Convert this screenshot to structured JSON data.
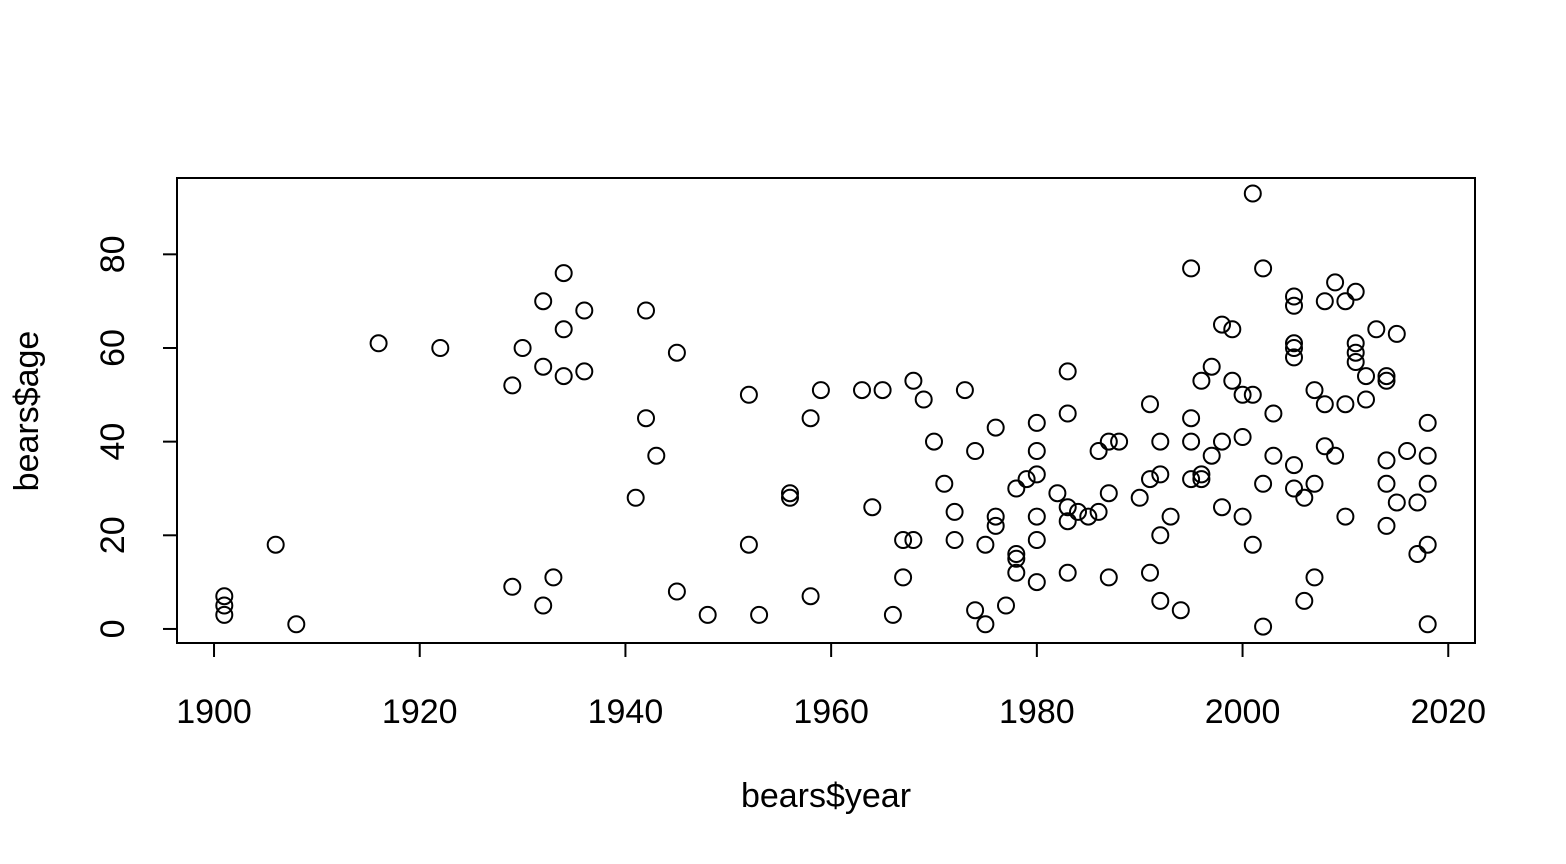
{
  "chart_data": {
    "type": "scatter",
    "title": "",
    "xlabel": "bears$year",
    "ylabel": "bears$age",
    "xlim": [
      1896.4,
      2022.6
    ],
    "ylim": [
      -3.0,
      96.3
    ],
    "x_ticks": [
      1900,
      1920,
      1940,
      1960,
      1980,
      2000,
      2020
    ],
    "y_ticks": [
      0,
      20,
      40,
      60,
      80
    ],
    "x_tick_labels": [
      "1900",
      "1920",
      "1940",
      "1960",
      "1980",
      "2000",
      "2020"
    ],
    "y_tick_labels": [
      "0",
      "20",
      "40",
      "60",
      "80"
    ],
    "grid": false,
    "marker": "open-circle",
    "color": "#000000",
    "points": [
      [
        1901,
        3
      ],
      [
        1901,
        5
      ],
      [
        1901,
        7
      ],
      [
        1906,
        18
      ],
      [
        1908,
        1
      ],
      [
        1916,
        61
      ],
      [
        1922,
        60
      ],
      [
        1929,
        52
      ],
      [
        1929,
        9
      ],
      [
        1930,
        60
      ],
      [
        1932,
        70
      ],
      [
        1932,
        56
      ],
      [
        1932,
        5
      ],
      [
        1933,
        11
      ],
      [
        1934,
        76
      ],
      [
        1934,
        64
      ],
      [
        1934,
        54
      ],
      [
        1936,
        68
      ],
      [
        1936,
        55
      ],
      [
        1941,
        28
      ],
      [
        1942,
        68
      ],
      [
        1942,
        45
      ],
      [
        1943,
        37
      ],
      [
        1945,
        59
      ],
      [
        1945,
        8
      ],
      [
        1948,
        3
      ],
      [
        1952,
        50
      ],
      [
        1952,
        18
      ],
      [
        1953,
        3
      ],
      [
        1956,
        29
      ],
      [
        1956,
        28
      ],
      [
        1958,
        45
      ],
      [
        1958,
        7
      ],
      [
        1959,
        51
      ],
      [
        1963,
        51
      ],
      [
        1964,
        26
      ],
      [
        1965,
        51
      ],
      [
        1966,
        3
      ],
      [
        1967,
        19
      ],
      [
        1967,
        11
      ],
      [
        1968,
        53
      ],
      [
        1968,
        19
      ],
      [
        1969,
        49
      ],
      [
        1970,
        40
      ],
      [
        1971,
        31
      ],
      [
        1972,
        25
      ],
      [
        1972,
        19
      ],
      [
        1973,
        51
      ],
      [
        1974,
        38
      ],
      [
        1974,
        4
      ],
      [
        1975,
        18
      ],
      [
        1975,
        1
      ],
      [
        1976,
        43
      ],
      [
        1976,
        24
      ],
      [
        1976,
        22
      ],
      [
        1977,
        5
      ],
      [
        1978,
        30
      ],
      [
        1978,
        16
      ],
      [
        1978,
        15
      ],
      [
        1978,
        12
      ],
      [
        1979,
        32
      ],
      [
        1980,
        44
      ],
      [
        1980,
        38
      ],
      [
        1980,
        33
      ],
      [
        1980,
        24
      ],
      [
        1980,
        19
      ],
      [
        1980,
        10
      ],
      [
        1982,
        29
      ],
      [
        1983,
        55
      ],
      [
        1983,
        46
      ],
      [
        1983,
        26
      ],
      [
        1983,
        23
      ],
      [
        1983,
        12
      ],
      [
        1984,
        25
      ],
      [
        1985,
        24
      ],
      [
        1986,
        38
      ],
      [
        1986,
        25
      ],
      [
        1987,
        40
      ],
      [
        1987,
        29
      ],
      [
        1987,
        11
      ],
      [
        1988,
        40
      ],
      [
        1990,
        28
      ],
      [
        1991,
        48
      ],
      [
        1991,
        32
      ],
      [
        1991,
        12
      ],
      [
        1992,
        40
      ],
      [
        1992,
        33
      ],
      [
        1992,
        20
      ],
      [
        1992,
        6
      ],
      [
        1993,
        24
      ],
      [
        1994,
        4
      ],
      [
        1995,
        77
      ],
      [
        1995,
        45
      ],
      [
        1995,
        40
      ],
      [
        1995,
        32
      ],
      [
        1996,
        53
      ],
      [
        1996,
        33
      ],
      [
        1996,
        32
      ],
      [
        1997,
        56
      ],
      [
        1997,
        37
      ],
      [
        1998,
        65
      ],
      [
        1998,
        40
      ],
      [
        1998,
        26
      ],
      [
        1999,
        64
      ],
      [
        1999,
        53
      ],
      [
        2000,
        50
      ],
      [
        2000,
        41
      ],
      [
        2000,
        24
      ],
      [
        2001,
        93
      ],
      [
        2001,
        50
      ],
      [
        2001,
        18
      ],
      [
        2002,
        77
      ],
      [
        2002,
        31
      ],
      [
        2002,
        0.5
      ],
      [
        2003,
        46
      ],
      [
        2003,
        37
      ],
      [
        2005,
        71
      ],
      [
        2005,
        69
      ],
      [
        2005,
        61
      ],
      [
        2005,
        60
      ],
      [
        2005,
        58
      ],
      [
        2005,
        35
      ],
      [
        2005,
        30
      ],
      [
        2006,
        28
      ],
      [
        2006,
        6
      ],
      [
        2007,
        51
      ],
      [
        2007,
        31
      ],
      [
        2007,
        11
      ],
      [
        2008,
        70
      ],
      [
        2008,
        48
      ],
      [
        2008,
        39
      ],
      [
        2009,
        74
      ],
      [
        2009,
        37
      ],
      [
        2010,
        70
      ],
      [
        2010,
        48
      ],
      [
        2010,
        24
      ],
      [
        2011,
        72
      ],
      [
        2011,
        61
      ],
      [
        2011,
        59
      ],
      [
        2011,
        57
      ],
      [
        2012,
        54
      ],
      [
        2012,
        49
      ],
      [
        2013,
        64
      ],
      [
        2014,
        54
      ],
      [
        2014,
        53
      ],
      [
        2014,
        36
      ],
      [
        2014,
        31
      ],
      [
        2014,
        22
      ],
      [
        2015,
        63
      ],
      [
        2015,
        27
      ],
      [
        2016,
        38
      ],
      [
        2017,
        27
      ],
      [
        2017,
        16
      ],
      [
        2018,
        44
      ],
      [
        2018,
        37
      ],
      [
        2018,
        31
      ],
      [
        2018,
        18
      ],
      [
        2018,
        1
      ]
    ]
  }
}
